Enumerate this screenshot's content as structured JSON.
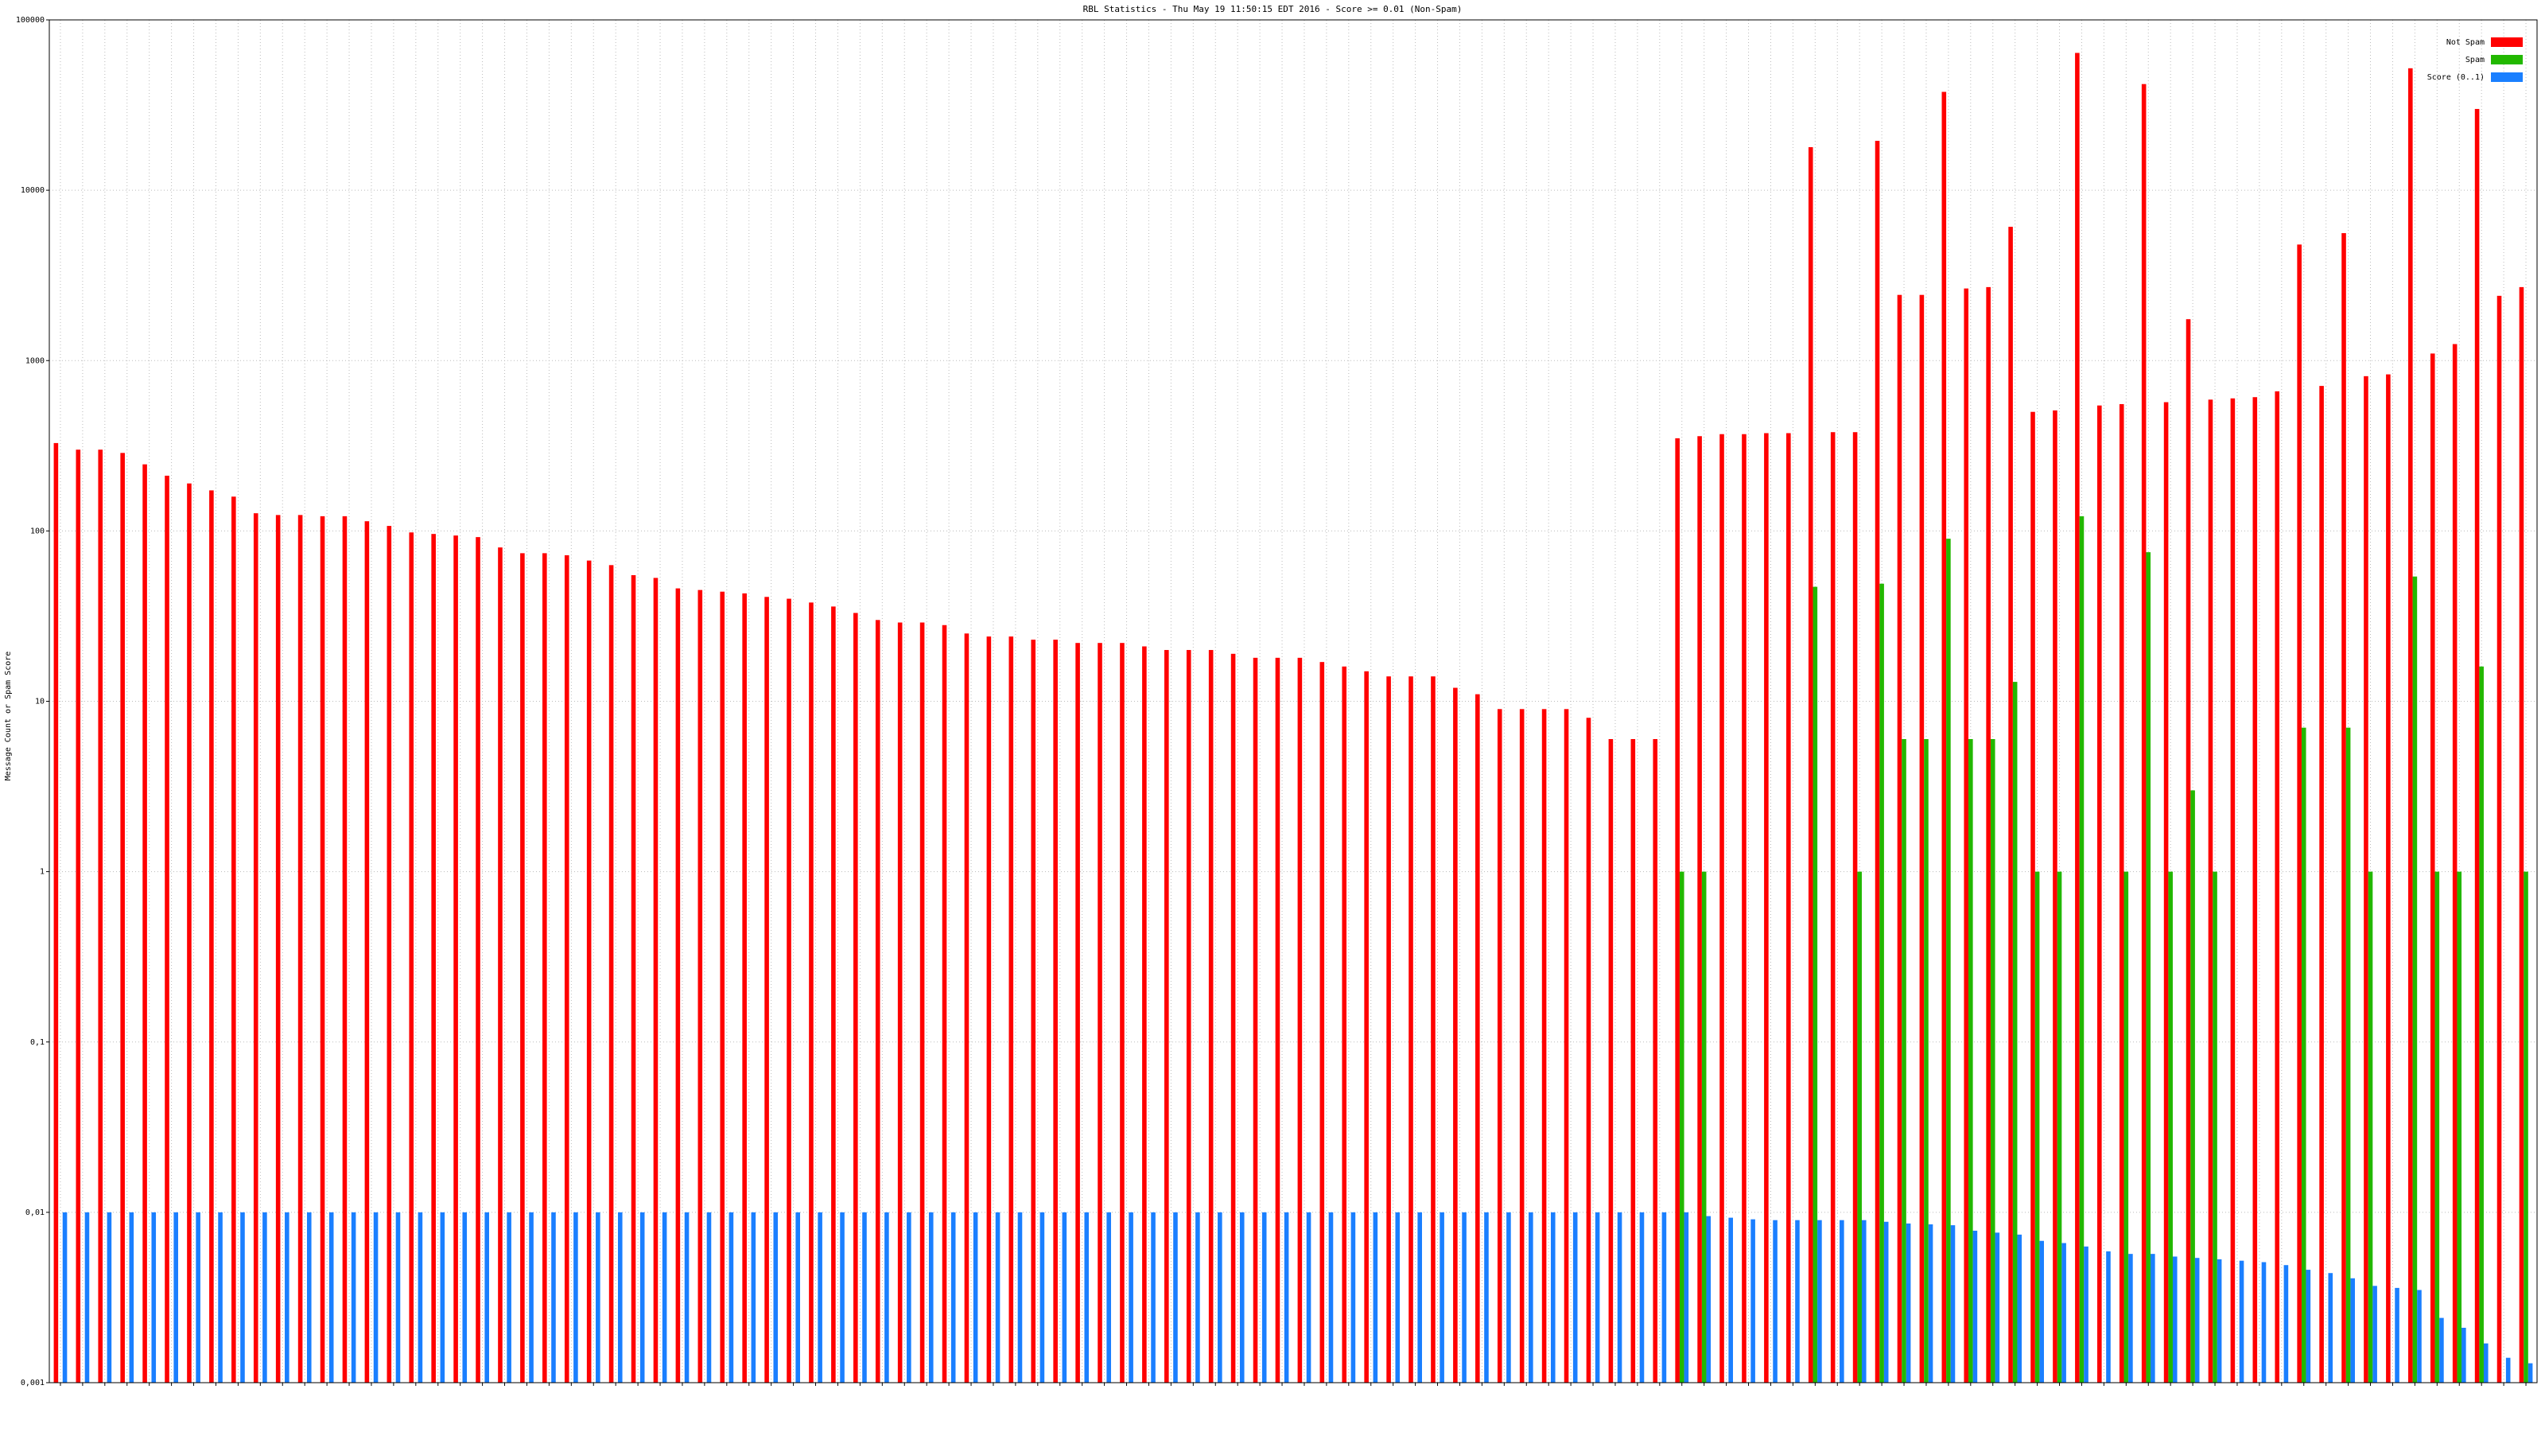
{
  "chart_data": {
    "type": "bar",
    "title": "RBL Statistics - Thu May 19 11:50:15 EDT 2016 - Score >= 0.01 (Non-Spam)",
    "y_label": "Message Count or Spam Score",
    "categories": [
      null,
      null,
      null,
      null,
      null,
      null,
      null,
      null,
      null,
      null,
      null,
      null,
      null,
      null,
      null,
      null,
      null,
      null,
      null,
      null,
      null,
      null,
      null,
      null,
      null,
      null,
      null,
      null,
      null,
      null,
      null,
      null,
      null,
      null,
      null,
      null,
      null,
      null,
      null,
      null,
      null,
      null,
      null,
      null,
      null,
      null,
      null,
      null,
      null,
      null,
      null,
      null,
      null,
      null,
      null,
      null,
      null,
      null,
      null,
      null,
      null,
      null,
      null,
      null,
      null,
      null,
      null,
      null,
      null,
      null,
      null,
      null,
      null,
      null,
      null,
      null,
      null,
      null,
      null,
      null,
      null,
      null,
      null,
      null,
      null,
      null,
      null,
      null,
      null,
      null,
      null,
      null,
      null,
      null,
      null,
      null,
      null,
      null,
      null,
      null,
      null,
      null,
      null,
      null,
      null,
      null,
      null,
      null,
      null,
      null,
      null,
      null
    ],
    "series": [
      {
        "name": "Not Spam",
        "color": "#ff0000",
        "values": [
          328,
          300,
          300,
          287,
          246,
          211,
          190,
          173,
          159,
          127,
          124,
          124,
          122,
          122,
          114,
          107,
          98,
          96,
          94,
          92,
          80,
          74,
          74,
          72,
          67,
          63,
          55,
          53,
          46,
          45,
          44,
          43,
          41,
          40,
          38,
          36,
          33,
          30,
          29,
          29,
          28,
          25,
          24,
          24,
          23,
          23,
          22,
          22,
          22,
          21,
          20,
          20,
          20,
          19,
          18,
          18,
          18,
          17,
          16,
          15,
          14,
          14,
          14,
          12,
          11,
          9,
          9,
          9,
          9,
          8,
          6,
          6,
          6,
          350,
          360,
          370,
          370,
          375,
          375,
          17900,
          380,
          380,
          19500,
          2430,
          2430,
          37800,
          2650,
          2700,
          6100,
          500,
          510,
          64000,
          545,
          555,
          42000,
          570,
          1750,
          590,
          600,
          610,
          660,
          4800,
          710,
          5600,
          810,
          830,
          52000,
          1100,
          1250,
          30000,
          2400,
          2700
        ]
      },
      {
        "name": "Spam",
        "color": "#22b800",
        "values": [
          null,
          null,
          null,
          null,
          null,
          null,
          null,
          null,
          null,
          null,
          null,
          null,
          null,
          null,
          null,
          null,
          null,
          null,
          null,
          null,
          null,
          null,
          null,
          null,
          null,
          null,
          null,
          null,
          null,
          null,
          null,
          null,
          null,
          null,
          null,
          null,
          null,
          null,
          null,
          null,
          null,
          null,
          null,
          null,
          null,
          null,
          null,
          null,
          null,
          null,
          null,
          null,
          null,
          null,
          null,
          null,
          null,
          null,
          null,
          null,
          null,
          null,
          null,
          null,
          null,
          null,
          null,
          null,
          null,
          null,
          null,
          null,
          null,
          1,
          1,
          null,
          null,
          null,
          null,
          47,
          null,
          1,
          49,
          6,
          6,
          90,
          6,
          6,
          13,
          1,
          1,
          122,
          null,
          1,
          75,
          1,
          3,
          1,
          null,
          null,
          null,
          7,
          null,
          7,
          1,
          null,
          54,
          1,
          1,
          16,
          null,
          1
        ]
      },
      {
        "name": "Score (0..1)",
        "color": "#1a7fff",
        "values": [
          0.01,
          0.01,
          0.01,
          0.01,
          0.01,
          0.01,
          0.01,
          0.01,
          0.01,
          0.01,
          0.01,
          0.01,
          0.01,
          0.01,
          0.01,
          0.01,
          0.01,
          0.01,
          0.01,
          0.01,
          0.01,
          0.01,
          0.01,
          0.01,
          0.01,
          0.01,
          0.01,
          0.01,
          0.01,
          0.01,
          0.01,
          0.01,
          0.01,
          0.01,
          0.01,
          0.01,
          0.01,
          0.01,
          0.01,
          0.01,
          0.01,
          0.01,
          0.01,
          0.01,
          0.01,
          0.01,
          0.01,
          0.01,
          0.01,
          0.01,
          0.01,
          0.01,
          0.01,
          0.01,
          0.01,
          0.01,
          0.01,
          0.01,
          0.01,
          0.01,
          0.01,
          0.01,
          0.01,
          0.01,
          0.01,
          0.01,
          0.01,
          0.01,
          0.01,
          0.01,
          0.01,
          0.01,
          0.01,
          0.01,
          0.0095,
          0.0093,
          0.0091,
          0.009,
          0.009,
          0.009,
          0.009,
          0.009,
          0.0088,
          0.0086,
          0.0085,
          0.0084,
          0.0078,
          0.0076,
          0.0074,
          0.0068,
          0.0066,
          0.0063,
          0.0059,
          0.0057,
          0.0057,
          0.0055,
          0.0054,
          0.0053,
          0.0052,
          0.0051,
          0.0049,
          0.0046,
          0.0044,
          0.0041,
          0.0037,
          0.0036,
          0.0035,
          0.0024,
          0.0021,
          0.0017,
          0.0014,
          0.0013
        ]
      }
    ],
    "log_scale": true,
    "ylim": [
      0.001,
      100000
    ],
    "yticks": [
      {
        "value": 0.001,
        "label": "0,001"
      },
      {
        "value": 0.01,
        "label": "0,01"
      },
      {
        "value": 0.1,
        "label": "0,1"
      },
      1,
      10,
      100,
      1000,
      10000,
      100000
    ],
    "grid": true,
    "legend": "upper right"
  }
}
